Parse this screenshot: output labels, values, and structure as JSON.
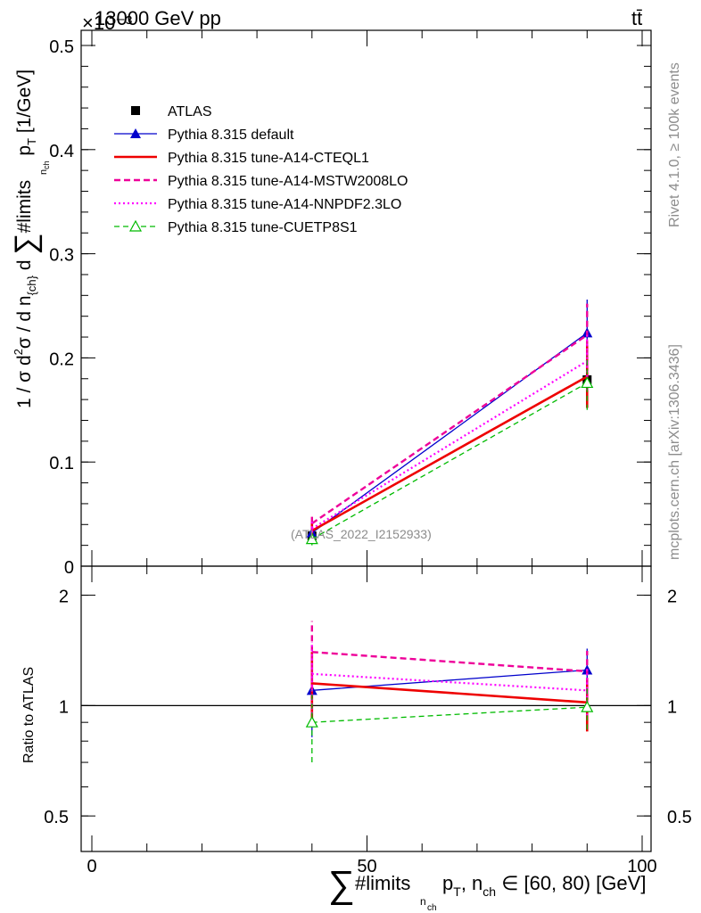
{
  "header": {
    "energy_label": "13000 GeV pp",
    "process_label": "tt̄",
    "exponent_label": "×10⁻³"
  },
  "side_labels": {
    "rivet": "Rivet 4.1.0, ≥ 100k events",
    "mcplots": "mcplots.cern.ch [arXiv:1306.3436]"
  },
  "analysis_label": "(ATLAS_2022_I2152933)",
  "colors": {
    "atlas": "#000000",
    "default": "#0000cc",
    "cteql1": "#ee0000",
    "mstw": "#ee0099",
    "nnpdf": "#ff00ff",
    "cuetp8s1": "#00bb00"
  },
  "chart_data": [
    {
      "type": "line",
      "panel": "main",
      "title": "",
      "ylabel": "1 / σ d²σ / d n_{ch} d ∑ #limits_{n_ch} p_T [1/GeV]",
      "xlabel": "∑ #limits_{n_ch} p_T, n_ch ∈ [60, 80) [GeV]",
      "xlim": [
        0,
        100
      ],
      "ylim": [
        0,
        0.5
      ],
      "y_multiplier": "1e-3",
      "y_ticks": [
        "0",
        "0.1",
        "0.2",
        "0.3",
        "0.4",
        "0.5"
      ],
      "x_ticks": [
        "0",
        "50",
        "100"
      ],
      "x": [
        40,
        90
      ],
      "legend_position": "top-left",
      "series": [
        {
          "name": "ATLAS",
          "key": "atlas",
          "style": "data",
          "values": [
            0.029,
            0.179
          ],
          "err": [
            0.005,
            0.026
          ]
        },
        {
          "name": "Pythia 8.315 default",
          "key": "default",
          "style": "solid-thin-triangle",
          "values": [
            0.032,
            0.224
          ],
          "err": [
            0.008,
            0.032
          ]
        },
        {
          "name": "Pythia 8.315 tune-A14-CTEQL1",
          "key": "cteql1",
          "style": "solid-thick",
          "values": [
            0.034,
            0.182
          ],
          "err": [
            0.008,
            0.03
          ]
        },
        {
          "name": "Pythia 8.315 tune-A14-MSTW2008LO",
          "key": "mstw",
          "style": "dashed",
          "values": [
            0.041,
            0.222
          ],
          "err": [
            0.009,
            0.03
          ]
        },
        {
          "name": "Pythia 8.315 tune-A14-NNPDF2.3LO",
          "key": "nnpdf",
          "style": "dotted",
          "values": [
            0.036,
            0.197
          ],
          "err": [
            0.008,
            0.028
          ]
        },
        {
          "name": "Pythia 8.315 tune-CUETP8S1",
          "key": "cuetp8s1",
          "style": "dashed-thin-open-triangle",
          "values": [
            0.026,
            0.176
          ],
          "err": [
            0.006,
            0.026
          ]
        }
      ]
    },
    {
      "type": "line",
      "panel": "ratio",
      "ylabel": "Ratio to ATLAS",
      "xlim": [
        0,
        100
      ],
      "ylim": [
        0.4,
        2.4
      ],
      "y_scale": "log",
      "y_ticks": [
        "0.5",
        "1",
        "2"
      ],
      "x": [
        40,
        90
      ],
      "series": [
        {
          "name": "Pythia 8.315 default",
          "key": "default",
          "values": [
            1.1,
            1.25
          ],
          "err": [
            0.28,
            0.18
          ]
        },
        {
          "name": "Pythia 8.315 tune-A14-CTEQL1",
          "key": "cteql1",
          "values": [
            1.15,
            1.02
          ],
          "err": [
            0.25,
            0.17
          ]
        },
        {
          "name": "Pythia 8.315 tune-A14-MSTW2008LO",
          "key": "mstw",
          "values": [
            1.4,
            1.24
          ],
          "err": [
            0.3,
            0.17
          ]
        },
        {
          "name": "Pythia 8.315 tune-A14-NNPDF2.3LO",
          "key": "nnpdf",
          "values": [
            1.22,
            1.1
          ],
          "err": [
            0.27,
            0.16
          ]
        },
        {
          "name": "Pythia 8.315 tune-CUETP8S1",
          "key": "cuetp8s1",
          "values": [
            0.9,
            0.99
          ],
          "err": [
            0.2,
            0.13
          ]
        }
      ]
    }
  ]
}
